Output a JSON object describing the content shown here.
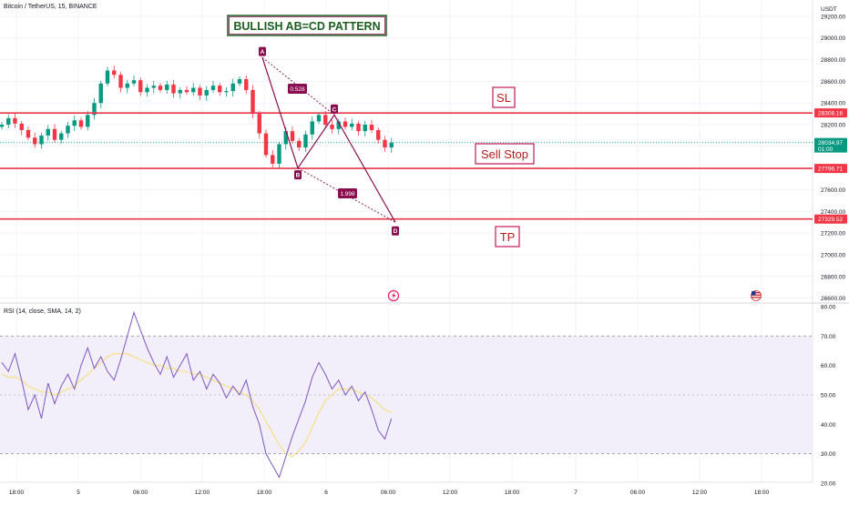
{
  "header": {
    "symbol_title": "Bitcoin / TetherUS, 15, BINANCE",
    "currency": "USDT"
  },
  "price_axis": {
    "ticks": [
      "29200.00",
      "29000.00",
      "28800.00",
      "28600.00",
      "28400.00",
      "28200.00",
      "28000.00",
      "27800.00",
      "27600.00",
      "27400.00",
      "27200.00",
      "27000.00",
      "26800.00",
      "26600.00"
    ],
    "badges": [
      {
        "name": "sl",
        "label": "28308.16",
        "color": "#f23645"
      },
      {
        "name": "current",
        "label": "28034.97",
        "sub": "01:00",
        "color": "#089981"
      },
      {
        "name": "sell-stop",
        "label": "27796.71",
        "color": "#f23645"
      },
      {
        "name": "tp",
        "label": "27329.52",
        "color": "#f23645"
      }
    ]
  },
  "rsi": {
    "title": "RSI (14, close, SMA, 14, 2)",
    "ticks": [
      "80.00",
      "70.00",
      "60.00",
      "50.00",
      "40.00",
      "30.00",
      "20.00"
    ],
    "upper": 70,
    "lower": 30,
    "middle": 50
  },
  "time_axis": {
    "ticks": [
      "18:00",
      "5",
      "06:00",
      "12:00",
      "18:00",
      "6",
      "06:00",
      "12:00",
      "18:00",
      "7",
      "06:00",
      "12:00",
      "18:00"
    ]
  },
  "annotations": {
    "title": "BULLISH AB=CD PATTERN",
    "sl_label": "SL",
    "sell_stop_label": "Sell Stop",
    "tp_label": "TP",
    "point_a": "A",
    "point_b": "B",
    "point_c": "C",
    "point_d": "D",
    "ratio_bc": "0.528",
    "ratio_cd": "1.998"
  },
  "colors": {
    "up": "#089981",
    "down": "#f23645",
    "level_line": "#e8374a",
    "pattern": "#880e4f",
    "rsi_line": "#7e57c2",
    "rsi_ma": "#f5e07a",
    "rsi_band": "#f2eefa"
  },
  "chart_data": [
    {
      "type": "candlestick",
      "y_unit": "USDT",
      "ylim": [
        26580,
        29300
      ],
      "levels": {
        "sl": 28308.16,
        "sell_stop": 27796.71,
        "tp": 27329.52,
        "current": 28034.97
      },
      "pattern": {
        "A": 28820,
        "B": 27800,
        "C": 28290,
        "D": 27300
      },
      "close_path": [
        28200,
        28260,
        28210,
        28150,
        28080,
        28020,
        28100,
        28160,
        28060,
        28120,
        28190,
        28240,
        28180,
        28290,
        28400,
        28580,
        28700,
        28660,
        28540,
        28580,
        28610,
        28500,
        28540,
        28560,
        28520,
        28570,
        28490,
        28520,
        28500,
        28540,
        28470,
        28520,
        28560,
        28500,
        28510,
        28580,
        28620,
        28520,
        28300,
        28120,
        27920,
        27840,
        28020,
        28140,
        28050,
        27990,
        28110,
        28230,
        28290,
        28200,
        28160,
        28230,
        28180,
        28210,
        28140,
        28200,
        28150,
        28060,
        27990,
        28035
      ]
    },
    {
      "type": "line",
      "name": "RSI (14, close, SMA, 14, 2)",
      "ylim": [
        20,
        80
      ],
      "values": [
        61,
        58,
        64,
        55,
        45,
        50,
        42,
        54,
        47,
        53,
        57,
        52,
        60,
        66,
        59,
        63,
        58,
        55,
        62,
        70,
        78,
        72,
        66,
        61,
        57,
        63,
        56,
        60,
        64,
        55,
        58,
        52,
        57,
        54,
        49,
        53,
        50,
        55,
        46,
        40,
        30,
        26,
        22,
        29,
        36,
        42,
        48,
        56,
        61,
        57,
        52,
        55,
        50,
        53,
        48,
        51,
        45,
        38,
        35,
        42
      ],
      "ma_values": [
        57,
        56,
        56,
        55,
        53,
        52,
        51,
        51,
        50,
        51,
        52,
        53,
        55,
        57,
        59,
        61,
        63,
        64,
        64,
        64,
        63,
        62,
        61,
        60,
        60,
        59,
        59,
        58,
        58,
        57,
        57,
        56,
        55,
        54,
        53,
        52,
        51,
        50,
        48,
        45,
        41,
        37,
        33,
        30,
        29,
        31,
        34,
        39,
        44,
        48,
        50,
        52,
        52,
        52,
        51,
        50,
        49,
        47,
        45,
        44
      ]
    }
  ]
}
